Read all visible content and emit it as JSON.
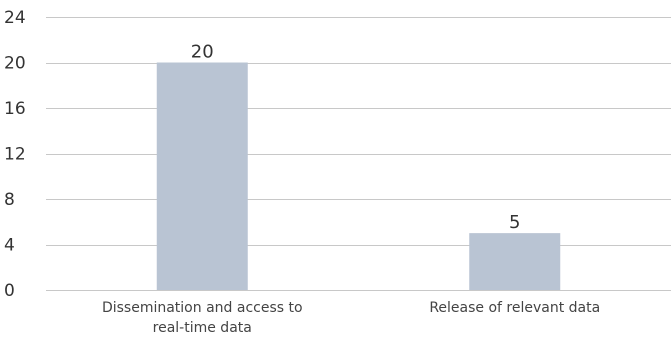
{
  "chart_data": {
    "type": "bar",
    "categories": [
      [
        "Dissemination and access to",
        "real-time data"
      ],
      [
        "Release of relevant data"
      ]
    ],
    "values": [
      20,
      5
    ],
    "data_labels": [
      "20",
      "5"
    ],
    "y_ticks": [
      "0",
      "4",
      "8",
      "12",
      "16",
      "20",
      "24"
    ],
    "y_tick_values": [
      0,
      4,
      8,
      12,
      16,
      20,
      24
    ],
    "ylim": [
      0,
      24
    ],
    "grid": true,
    "legend": "none",
    "colors": {
      "bar": "#b9c4d3",
      "grid": "#c8c8c8"
    }
  }
}
